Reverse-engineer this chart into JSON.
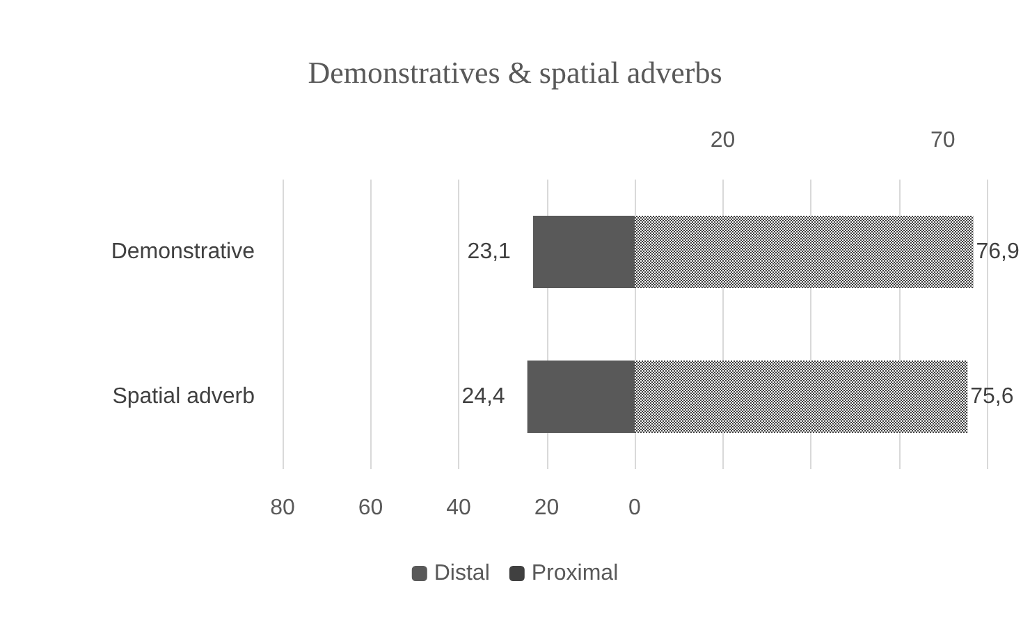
{
  "chart_data": {
    "type": "bar",
    "title": "Demonstratives & spatial adverbs",
    "orientation": "horizontal",
    "categories": [
      "Demonstrative",
      "Spatial adverb"
    ],
    "series": [
      {
        "name": "Distal",
        "color": "#595959",
        "values": [
          23.1,
          24.4
        ],
        "base": [
          -23.1,
          -24.4
        ],
        "value_labels": [
          "23,1",
          "24,4"
        ]
      },
      {
        "name": "Proximal",
        "color": "#404040",
        "values": [
          76.9,
          75.6
        ],
        "value_labels": [
          "76,9",
          "75,6"
        ]
      }
    ],
    "xlim": [
      -80,
      80
    ],
    "xticks": [
      {
        "value": -80,
        "label": "80"
      },
      {
        "value": -60,
        "label": "60"
      },
      {
        "value": -40,
        "label": "40"
      },
      {
        "value": -20,
        "label": "20"
      },
      0,
      {
        "value": 20,
        "label": null
      },
      {
        "value": 40,
        "label": null
      },
      {
        "value": 60,
        "label": null
      },
      {
        "value": 80,
        "label": null
      }
    ],
    "x2lim": [
      -80,
      80
    ],
    "x2ticks": [
      20,
      70
    ],
    "grid": "x",
    "legend": "bottom"
  }
}
